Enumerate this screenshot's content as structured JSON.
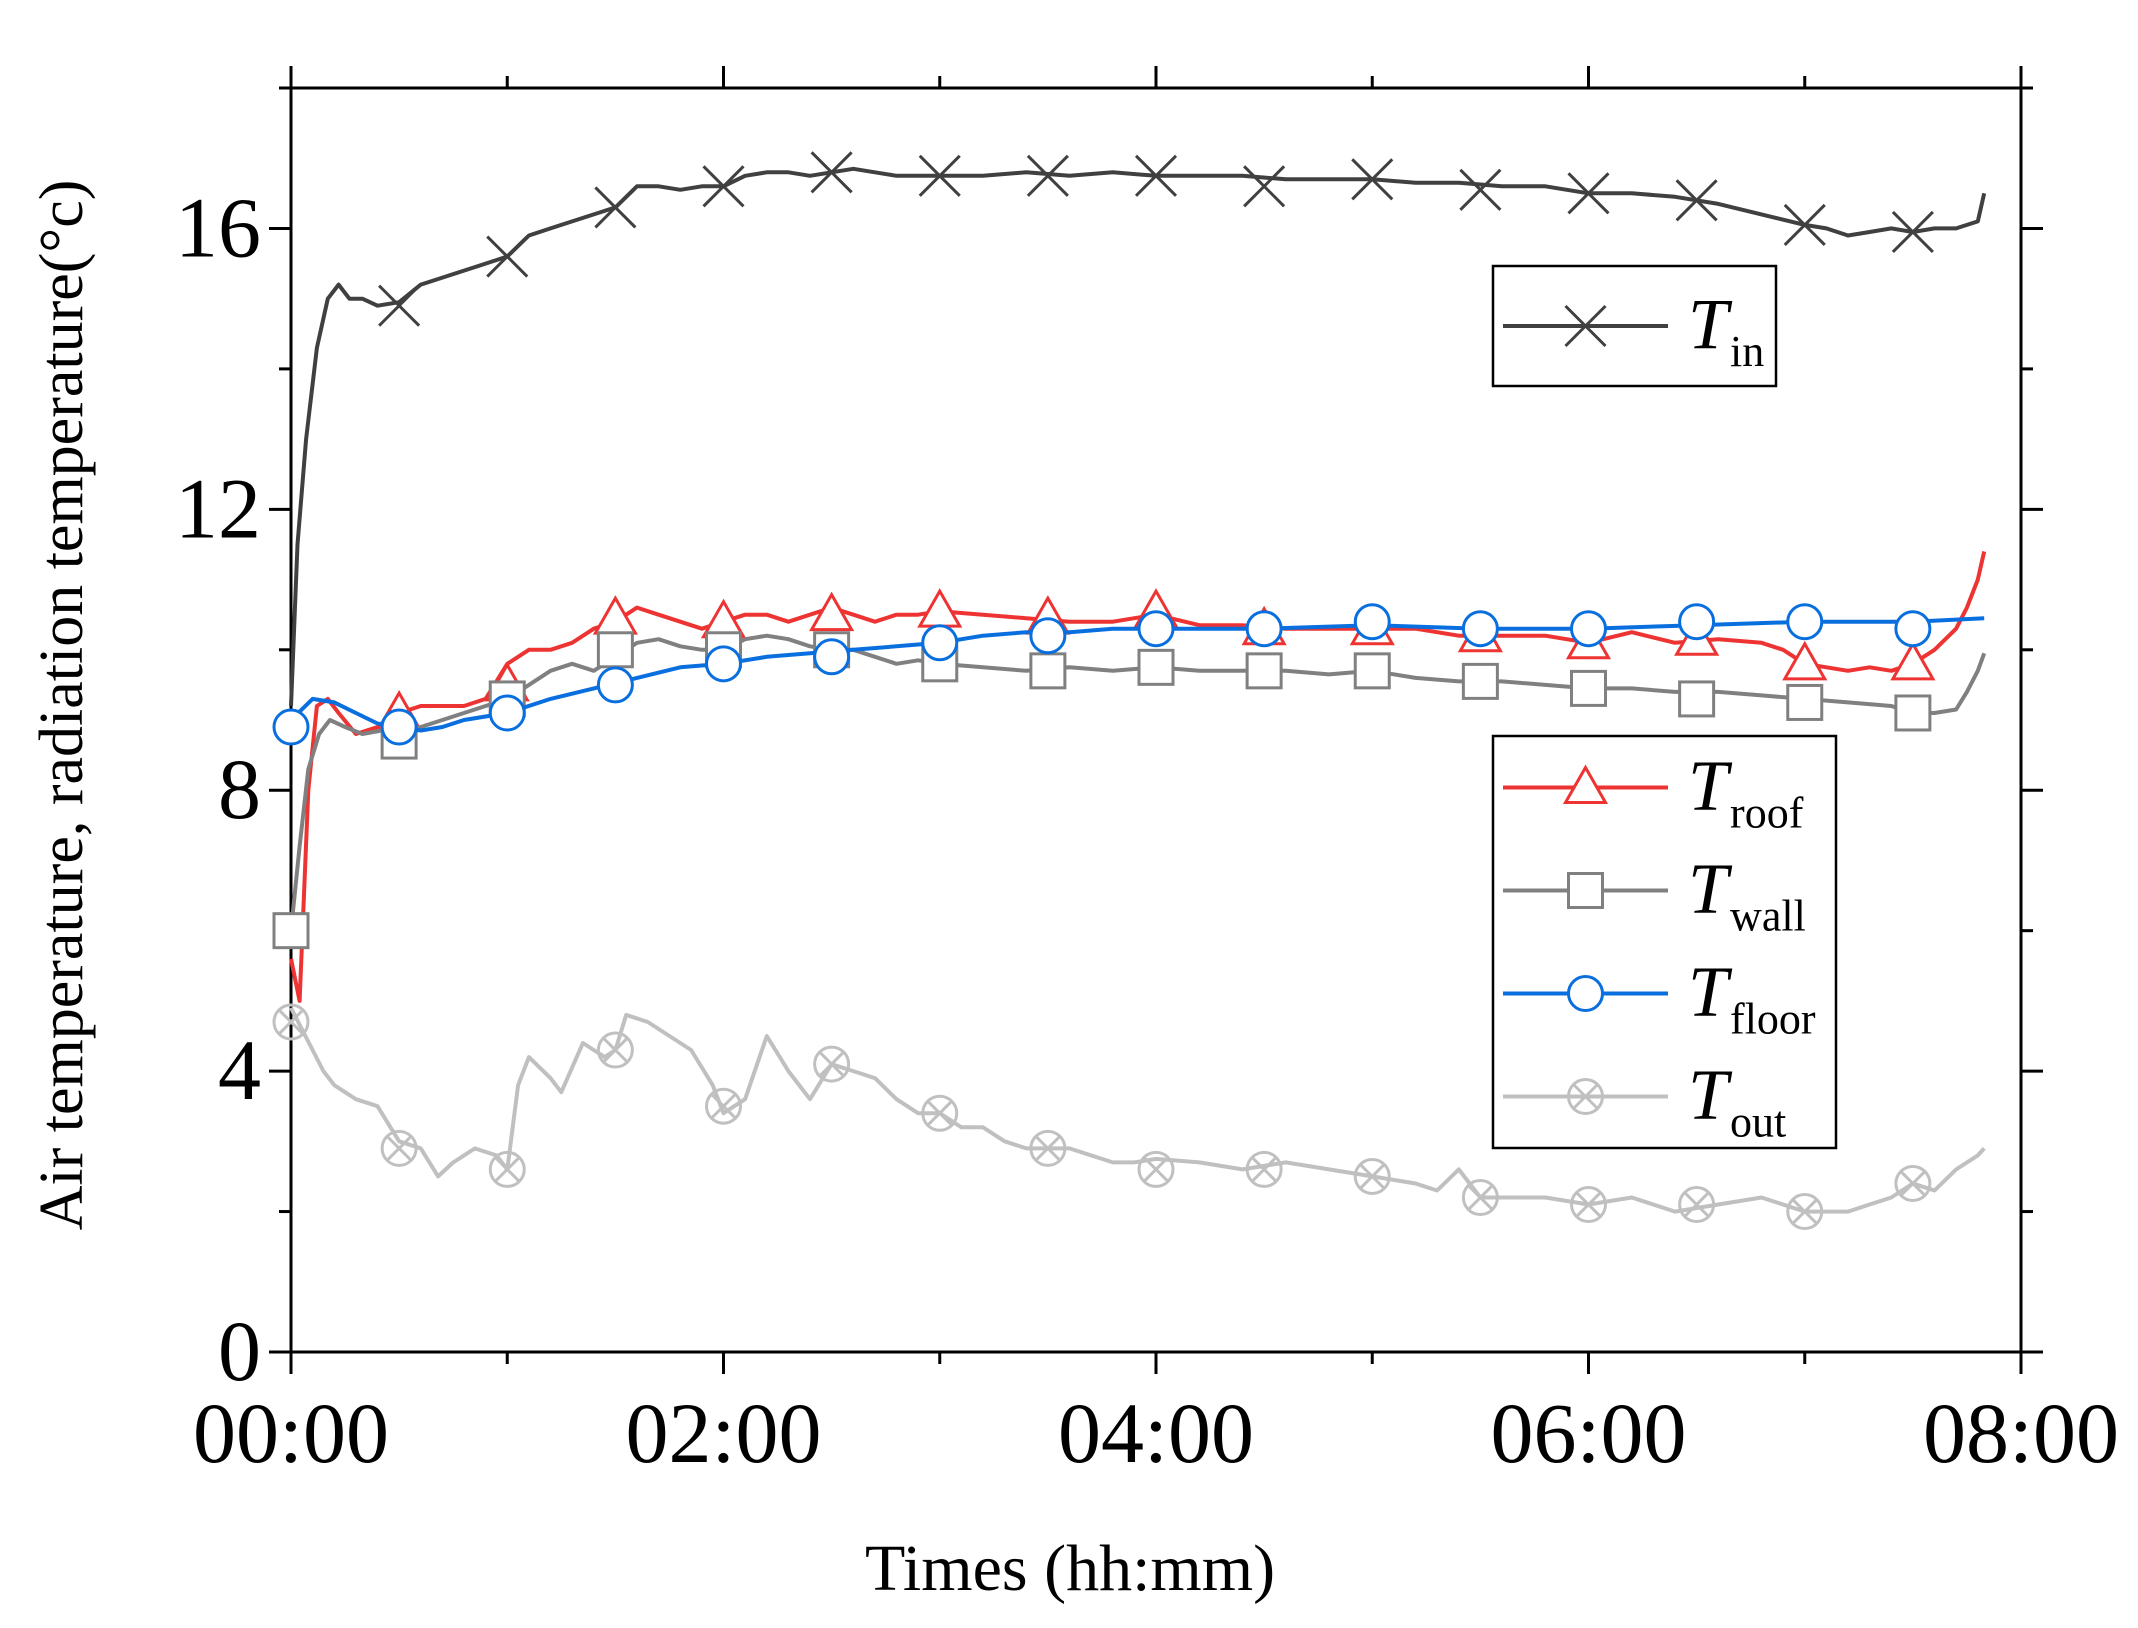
{
  "chart_data": {
    "type": "line",
    "title": "",
    "xlabel": "Times (hh:mm)",
    "ylabel": "Air temperature, radiation temperature(°c)",
    "xlim": [
      0,
      8
    ],
    "ylim": [
      0,
      18
    ],
    "x_ticks": [
      {
        "value": 0,
        "label": "00:00"
      },
      {
        "value": 2,
        "label": "02:00"
      },
      {
        "value": 4,
        "label": "04:00"
      },
      {
        "value": 6,
        "label": "06:00"
      },
      {
        "value": 8,
        "label": "08:00"
      }
    ],
    "x_minor_step": 1,
    "y_ticks": [
      {
        "value": 0,
        "label": "0"
      },
      {
        "value": 4,
        "label": "4"
      },
      {
        "value": 8,
        "label": "8"
      },
      {
        "value": 12,
        "label": "12"
      },
      {
        "value": 16,
        "label": "16"
      }
    ],
    "y_minor_step": 2,
    "grid": false,
    "series": [
      {
        "name": "T_in",
        "label_main": "T",
        "label_sub": "in",
        "color": "#404040",
        "marker": "x",
        "marker_x": [
          0.5,
          1.0,
          1.5,
          2.0,
          2.5,
          3.0,
          3.5,
          4.0,
          4.5,
          5.0,
          5.5,
          6.0,
          6.5,
          7.0,
          7.5
        ],
        "marker_y": [
          14.9,
          15.6,
          16.3,
          16.6,
          16.8,
          16.75,
          16.75,
          16.75,
          16.6,
          16.7,
          16.55,
          16.5,
          16.4,
          16.05,
          15.95
        ],
        "x": [
          0.0,
          0.03,
          0.07,
          0.12,
          0.17,
          0.22,
          0.27,
          0.33,
          0.4,
          0.5,
          0.6,
          0.7,
          0.8,
          0.9,
          1.0,
          1.1,
          1.2,
          1.3,
          1.4,
          1.5,
          1.6,
          1.7,
          1.8,
          1.9,
          2.0,
          2.1,
          2.2,
          2.3,
          2.4,
          2.5,
          2.6,
          2.7,
          2.8,
          2.9,
          3.0,
          3.2,
          3.4,
          3.6,
          3.8,
          4.0,
          4.2,
          4.4,
          4.6,
          4.8,
          5.0,
          5.2,
          5.4,
          5.6,
          5.8,
          6.0,
          6.2,
          6.4,
          6.6,
          6.8,
          7.0,
          7.1,
          7.2,
          7.3,
          7.4,
          7.5,
          7.6,
          7.7,
          7.8,
          7.83
        ],
        "y": [
          9.2,
          11.5,
          13.0,
          14.3,
          15.0,
          15.2,
          15.0,
          15.0,
          14.9,
          14.95,
          15.2,
          15.3,
          15.4,
          15.5,
          15.6,
          15.9,
          16.0,
          16.1,
          16.2,
          16.3,
          16.6,
          16.6,
          16.55,
          16.6,
          16.6,
          16.75,
          16.8,
          16.8,
          16.75,
          16.8,
          16.85,
          16.8,
          16.75,
          16.75,
          16.75,
          16.75,
          16.8,
          16.75,
          16.8,
          16.75,
          16.75,
          16.75,
          16.7,
          16.7,
          16.7,
          16.65,
          16.65,
          16.6,
          16.6,
          16.5,
          16.5,
          16.45,
          16.35,
          16.2,
          16.05,
          16.0,
          15.9,
          15.95,
          16.0,
          15.95,
          16.0,
          16.0,
          16.1,
          16.5
        ]
      },
      {
        "name": "T_roof",
        "label_main": "T",
        "label_sub": "roof",
        "color": "#ee3333",
        "marker": "triangle",
        "marker_x": [
          0.5,
          1.0,
          1.5,
          2.0,
          2.5,
          3.0,
          3.5,
          4.0,
          4.5,
          5.0,
          5.5,
          6.0,
          6.5,
          7.0,
          7.5
        ],
        "marker_y": [
          9.1,
          9.5,
          10.45,
          10.4,
          10.5,
          10.55,
          10.45,
          10.55,
          10.3,
          10.3,
          10.2,
          10.1,
          10.15,
          9.8,
          9.8
        ],
        "x": [
          0.0,
          0.04,
          0.08,
          0.12,
          0.17,
          0.22,
          0.3,
          0.4,
          0.5,
          0.6,
          0.7,
          0.8,
          0.9,
          1.0,
          1.1,
          1.2,
          1.3,
          1.4,
          1.5,
          1.6,
          1.7,
          1.8,
          1.9,
          2.0,
          2.1,
          2.2,
          2.3,
          2.4,
          2.5,
          2.6,
          2.7,
          2.8,
          2.9,
          3.0,
          3.2,
          3.4,
          3.6,
          3.8,
          4.0,
          4.2,
          4.4,
          4.6,
          4.8,
          5.0,
          5.2,
          5.4,
          5.6,
          5.8,
          6.0,
          6.2,
          6.4,
          6.6,
          6.8,
          6.9,
          7.0,
          7.1,
          7.2,
          7.3,
          7.4,
          7.5,
          7.6,
          7.7,
          7.75,
          7.8,
          7.83
        ],
        "y": [
          5.6,
          5.0,
          8.0,
          9.2,
          9.3,
          9.1,
          8.8,
          8.9,
          9.1,
          9.2,
          9.2,
          9.2,
          9.3,
          9.8,
          10.0,
          10.0,
          10.1,
          10.3,
          10.4,
          10.6,
          10.5,
          10.4,
          10.3,
          10.4,
          10.5,
          10.5,
          10.4,
          10.5,
          10.6,
          10.5,
          10.4,
          10.5,
          10.5,
          10.55,
          10.5,
          10.45,
          10.4,
          10.4,
          10.5,
          10.35,
          10.35,
          10.3,
          10.3,
          10.3,
          10.3,
          10.2,
          10.2,
          10.2,
          10.1,
          10.25,
          10.1,
          10.15,
          10.1,
          10.0,
          9.8,
          9.75,
          9.7,
          9.75,
          9.7,
          9.8,
          10.0,
          10.3,
          10.6,
          11.0,
          11.4
        ]
      },
      {
        "name": "T_wall",
        "label_main": "T",
        "label_sub": "wall",
        "color": "#808080",
        "marker": "square",
        "marker_x": [
          0.0,
          0.5,
          1.0,
          1.5,
          2.0,
          2.5,
          3.0,
          3.5,
          4.0,
          4.5,
          5.0,
          5.5,
          6.0,
          6.5,
          7.0,
          7.5
        ],
        "marker_y": [
          6.0,
          8.7,
          9.3,
          10.0,
          10.0,
          10.0,
          9.8,
          9.7,
          9.75,
          9.7,
          9.7,
          9.55,
          9.45,
          9.3,
          9.25,
          9.1
        ],
        "x": [
          0.0,
          0.04,
          0.08,
          0.13,
          0.18,
          0.25,
          0.33,
          0.42,
          0.5,
          0.6,
          0.7,
          0.8,
          0.9,
          1.0,
          1.1,
          1.2,
          1.3,
          1.4,
          1.5,
          1.6,
          1.7,
          1.8,
          1.9,
          2.0,
          2.1,
          2.2,
          2.3,
          2.4,
          2.5,
          2.6,
          2.7,
          2.8,
          2.9,
          3.0,
          3.2,
          3.4,
          3.6,
          3.8,
          4.0,
          4.2,
          4.4,
          4.6,
          4.8,
          5.0,
          5.2,
          5.4,
          5.6,
          5.8,
          6.0,
          6.2,
          6.4,
          6.6,
          6.8,
          7.0,
          7.2,
          7.4,
          7.5,
          7.6,
          7.7,
          7.75,
          7.8,
          7.83
        ],
        "y": [
          6.0,
          7.2,
          8.3,
          8.8,
          9.0,
          8.9,
          8.8,
          8.85,
          8.8,
          8.9,
          9.0,
          9.1,
          9.2,
          9.3,
          9.5,
          9.7,
          9.8,
          9.7,
          9.9,
          10.1,
          10.15,
          10.05,
          10.0,
          10.0,
          10.15,
          10.2,
          10.15,
          10.05,
          10.0,
          10.0,
          9.9,
          9.8,
          9.85,
          9.8,
          9.75,
          9.7,
          9.75,
          9.7,
          9.75,
          9.7,
          9.7,
          9.7,
          9.65,
          9.7,
          9.6,
          9.55,
          9.55,
          9.5,
          9.45,
          9.45,
          9.4,
          9.4,
          9.35,
          9.3,
          9.25,
          9.2,
          9.1,
          9.1,
          9.15,
          9.4,
          9.7,
          9.95
        ]
      },
      {
        "name": "T_floor",
        "label_main": "T",
        "label_sub": "floor",
        "color": "#0a6fde",
        "marker": "circle",
        "marker_x": [
          0.0,
          0.5,
          1.0,
          1.5,
          2.0,
          2.5,
          3.0,
          3.5,
          4.0,
          4.5,
          5.0,
          5.5,
          6.0,
          6.5,
          7.0,
          7.5
        ],
        "marker_y": [
          8.9,
          8.9,
          9.1,
          9.5,
          9.8,
          9.9,
          10.1,
          10.2,
          10.3,
          10.3,
          10.4,
          10.3,
          10.3,
          10.4,
          10.4,
          10.3
        ],
        "x": [
          0.0,
          0.1,
          0.2,
          0.3,
          0.4,
          0.5,
          0.6,
          0.7,
          0.8,
          0.9,
          1.0,
          1.2,
          1.4,
          1.6,
          1.8,
          2.0,
          2.2,
          2.4,
          2.6,
          2.8,
          3.0,
          3.2,
          3.4,
          3.6,
          3.8,
          4.0,
          4.5,
          5.0,
          5.5,
          6.0,
          6.5,
          7.0,
          7.5,
          7.83
        ],
        "y": [
          9.0,
          9.3,
          9.25,
          9.1,
          8.95,
          8.9,
          8.85,
          8.9,
          9.0,
          9.05,
          9.1,
          9.3,
          9.45,
          9.6,
          9.75,
          9.8,
          9.9,
          9.95,
          10.0,
          10.05,
          10.1,
          10.2,
          10.25,
          10.25,
          10.3,
          10.3,
          10.3,
          10.35,
          10.3,
          10.3,
          10.35,
          10.4,
          10.4,
          10.45
        ]
      },
      {
        "name": "T_out",
        "label_main": "T",
        "label_sub": "out",
        "color": "#c0c0c0",
        "marker": "circle-x",
        "marker_x": [
          0.0,
          0.5,
          1.0,
          1.5,
          2.0,
          2.5,
          3.0,
          3.5,
          4.0,
          4.5,
          5.0,
          5.5,
          6.0,
          6.5,
          7.0,
          7.5
        ],
        "marker_y": [
          4.7,
          2.9,
          2.6,
          4.3,
          3.5,
          4.1,
          3.4,
          2.9,
          2.6,
          2.6,
          2.5,
          2.2,
          2.1,
          2.1,
          2.0,
          2.4
        ],
        "x": [
          0.0,
          0.05,
          0.1,
          0.15,
          0.2,
          0.3,
          0.4,
          0.5,
          0.6,
          0.68,
          0.75,
          0.85,
          0.95,
          1.0,
          1.05,
          1.1,
          1.2,
          1.25,
          1.35,
          1.45,
          1.5,
          1.55,
          1.65,
          1.75,
          1.85,
          1.95,
          2.0,
          2.1,
          2.2,
          2.3,
          2.4,
          2.5,
          2.6,
          2.7,
          2.8,
          2.9,
          3.0,
          3.1,
          3.2,
          3.3,
          3.4,
          3.5,
          3.6,
          3.7,
          3.8,
          3.9,
          4.0,
          4.2,
          4.4,
          4.6,
          4.8,
          5.0,
          5.2,
          5.3,
          5.4,
          5.5,
          5.6,
          5.8,
          6.0,
          6.2,
          6.4,
          6.6,
          6.8,
          7.0,
          7.2,
          7.3,
          7.4,
          7.5,
          7.6,
          7.7,
          7.8,
          7.83
        ],
        "y": [
          4.9,
          4.6,
          4.3,
          4.0,
          3.8,
          3.6,
          3.5,
          3.0,
          2.9,
          2.5,
          2.7,
          2.9,
          2.8,
          2.6,
          3.8,
          4.2,
          3.9,
          3.7,
          4.4,
          4.2,
          4.3,
          4.8,
          4.7,
          4.5,
          4.3,
          3.8,
          3.4,
          3.6,
          4.5,
          4.0,
          3.6,
          4.1,
          4.0,
          3.9,
          3.6,
          3.4,
          3.4,
          3.2,
          3.2,
          3.0,
          2.9,
          2.9,
          2.9,
          2.8,
          2.7,
          2.7,
          2.75,
          2.7,
          2.6,
          2.7,
          2.6,
          2.5,
          2.4,
          2.3,
          2.6,
          2.2,
          2.2,
          2.2,
          2.1,
          2.2,
          2.0,
          2.1,
          2.2,
          2.0,
          2.0,
          2.1,
          2.2,
          2.4,
          2.3,
          2.6,
          2.8,
          2.9
        ]
      }
    ],
    "legends": [
      {
        "position": "upper-right",
        "entries": [
          "T_in"
        ]
      },
      {
        "position": "center-right",
        "entries": [
          "T_roof",
          "T_wall",
          "T_floor",
          "T_out"
        ]
      }
    ]
  }
}
